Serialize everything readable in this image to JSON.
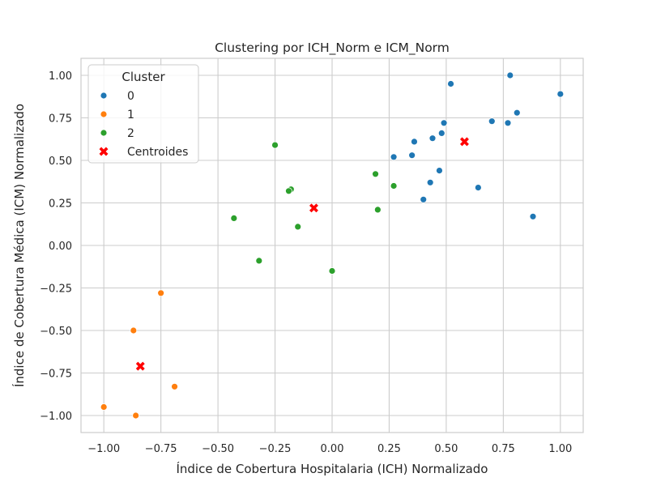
{
  "chart_data": {
    "type": "scatter",
    "title": "Clustering por ICH_Norm e ICM_Norm",
    "xlabel": "Índice de Cobertura Hospitalaria (ICH) Normalizado",
    "ylabel": "Índice de Cobertura Médica (ICM) Normalizado",
    "xlim": [
      -1.1,
      1.1
    ],
    "ylim": [
      -1.1,
      1.1
    ],
    "xticks": [
      -1.0,
      -0.75,
      -0.5,
      -0.25,
      0.0,
      0.25,
      0.5,
      0.75,
      1.0
    ],
    "yticks": [
      -1.0,
      -0.75,
      -0.5,
      -0.25,
      0.0,
      0.25,
      0.5,
      0.75,
      1.0
    ],
    "xtick_labels": [
      "−1.00",
      "−0.75",
      "−0.50",
      "−0.25",
      "0.00",
      "0.25",
      "0.50",
      "0.75",
      "1.00"
    ],
    "ytick_labels": [
      "−1.00",
      "−0.75",
      "−0.50",
      "−0.25",
      "0.00",
      "0.25",
      "0.50",
      "0.75",
      "1.00"
    ],
    "grid": true,
    "legend": {
      "title": "Cluster",
      "placement": "upper-left"
    },
    "series": [
      {
        "name": "0",
        "color": "#1f77b4",
        "marker": "circle",
        "points": [
          [
            0.78,
            1.0
          ],
          [
            1.0,
            0.89
          ],
          [
            0.52,
            0.95
          ],
          [
            0.81,
            0.78
          ],
          [
            0.7,
            0.73
          ],
          [
            0.77,
            0.72
          ],
          [
            0.49,
            0.72
          ],
          [
            0.48,
            0.66
          ],
          [
            0.44,
            0.63
          ],
          [
            0.36,
            0.61
          ],
          [
            0.27,
            0.52
          ],
          [
            0.35,
            0.53
          ],
          [
            0.47,
            0.44
          ],
          [
            0.43,
            0.37
          ],
          [
            0.64,
            0.34
          ],
          [
            0.4,
            0.27
          ],
          [
            0.88,
            0.17
          ]
        ]
      },
      {
        "name": "1",
        "color": "#ff7f0e",
        "marker": "circle",
        "points": [
          [
            -0.75,
            -0.28
          ],
          [
            -0.87,
            -0.5
          ],
          [
            -0.69,
            -0.83
          ],
          [
            -1.0,
            -0.95
          ],
          [
            -0.86,
            -1.0
          ]
        ]
      },
      {
        "name": "2",
        "color": "#2ca02c",
        "marker": "circle",
        "points": [
          [
            -0.25,
            0.59
          ],
          [
            0.19,
            0.42
          ],
          [
            -0.18,
            0.33
          ],
          [
            -0.19,
            0.32
          ],
          [
            0.27,
            0.35
          ],
          [
            0.2,
            0.21
          ],
          [
            -0.43,
            0.16
          ],
          [
            -0.15,
            0.11
          ],
          [
            -0.32,
            -0.09
          ],
          [
            0.0,
            -0.15
          ]
        ]
      },
      {
        "name": "Centroides",
        "color": "#ff0000",
        "marker": "x",
        "points": [
          [
            0.58,
            0.61
          ],
          [
            -0.08,
            0.22
          ],
          [
            -0.84,
            -0.71
          ]
        ]
      }
    ]
  }
}
